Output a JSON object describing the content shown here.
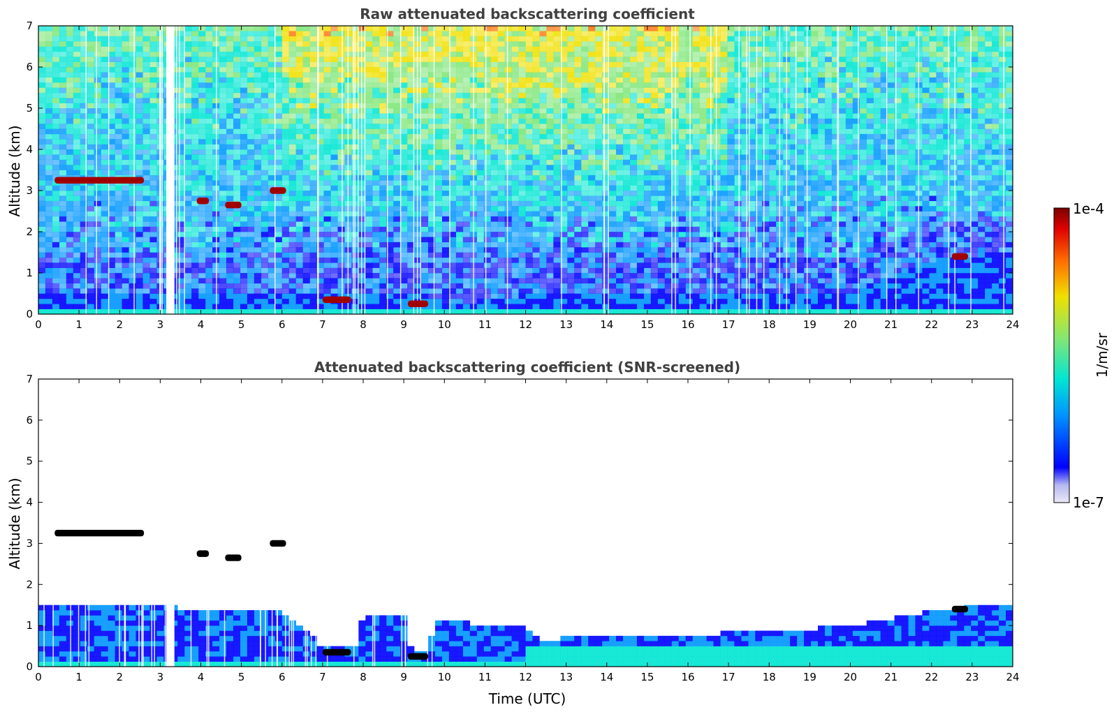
{
  "chart_data": [
    {
      "type": "heatmap",
      "title": "Raw attenuated backscattering coefficient",
      "xlabel": "",
      "ylabel": "Altitude (km)",
      "xlim": [
        0,
        24
      ],
      "ylim": [
        0,
        7
      ],
      "x_ticks": [
        "0",
        "1",
        "2",
        "3",
        "4",
        "5",
        "6",
        "7",
        "8",
        "9",
        "10",
        "11",
        "12",
        "13",
        "14",
        "15",
        "16",
        "17",
        "18",
        "19",
        "20",
        "21",
        "22",
        "23",
        "24"
      ],
      "y_ticks": [
        "0",
        "1",
        "2",
        "3",
        "4",
        "5",
        "6",
        "7"
      ],
      "description_values": {
        "boundary_layer_top_km": [
          [
            0,
            0.55
          ],
          [
            6,
            0.5
          ],
          [
            9.5,
            0.45
          ],
          [
            10,
            0.2
          ],
          [
            11,
            0.35
          ],
          [
            13,
            0.55
          ],
          [
            20,
            0.5
          ],
          [
            22,
            1.3
          ],
          [
            24,
            1.5
          ]
        ],
        "cloud_layers": [
          {
            "t_start": 0.4,
            "t_end": 2.6,
            "alt_km": 3.25
          },
          {
            "t_start": 3.9,
            "t_end": 4.2,
            "alt_km": 2.75
          },
          {
            "t_start": 4.6,
            "t_end": 5.0,
            "alt_km": 2.65
          },
          {
            "t_start": 5.7,
            "t_end": 6.1,
            "alt_km": 3.0
          },
          {
            "t_start": 7.0,
            "t_end": 7.7,
            "alt_km": 0.35
          },
          {
            "t_start": 9.1,
            "t_end": 9.6,
            "alt_km": 0.25
          },
          {
            "t_start": 22.5,
            "t_end": 22.9,
            "alt_km": 1.4
          }
        ]
      }
    },
    {
      "type": "heatmap",
      "title": "Attenuated backscattering coefficient (SNR-screened)",
      "xlabel": "Time (UTC)",
      "ylabel": "Altitude (km)",
      "xlim": [
        0,
        24
      ],
      "ylim": [
        0,
        7
      ],
      "x_ticks": [
        "0",
        "1",
        "2",
        "3",
        "4",
        "5",
        "6",
        "7",
        "8",
        "9",
        "10",
        "11",
        "12",
        "13",
        "14",
        "15",
        "16",
        "17",
        "18",
        "19",
        "20",
        "21",
        "22",
        "23",
        "24"
      ],
      "y_ticks": [
        "0",
        "1",
        "2",
        "3",
        "4",
        "5",
        "6",
        "7"
      ],
      "description_values": {
        "screened_top_km": [
          [
            0,
            1.45
          ],
          [
            3,
            1.45
          ],
          [
            6,
            1.35
          ],
          [
            7,
            0.5
          ],
          [
            7.8,
            0.45
          ],
          [
            8,
            1.3
          ],
          [
            9,
            1.3
          ],
          [
            9.2,
            0.4
          ],
          [
            9.6,
            0.4
          ],
          [
            9.8,
            1.1
          ],
          [
            12,
            1.0
          ],
          [
            12.5,
            0.6
          ],
          [
            13,
            0.7
          ],
          [
            18,
            0.85
          ],
          [
            20,
            1.0
          ],
          [
            22,
            1.35
          ],
          [
            24,
            1.55
          ]
        ]
      }
    }
  ],
  "colorbar": {
    "label": "1/m/sr",
    "max_label": "1e-4",
    "min_label": "1e-7",
    "colormap": "jet",
    "colors": [
      "#ece8f6",
      "#c4c8f0",
      "#0000ff",
      "#0096ff",
      "#00e6d2",
      "#7ee678",
      "#f0e000",
      "#ff6e00",
      "#e00000",
      "#7a0000"
    ]
  }
}
